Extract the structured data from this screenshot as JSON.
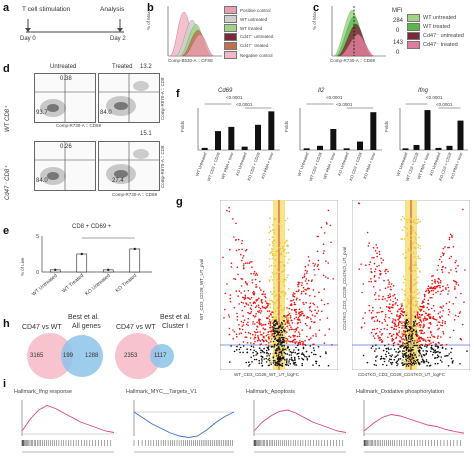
{
  "panel_a": {
    "label": "a",
    "stim_text": "T cell stimulation",
    "analysis_text": "Analysis",
    "day0": "Day 0",
    "day2": "Day 2"
  },
  "panel_b": {
    "label": "b",
    "ylabel": "% of Max",
    "xlabel": "Comp-B530-A :: CFSE",
    "legend": [
      {
        "label": "Positive control",
        "color": "#e8a0b0"
      },
      {
        "label": "WT untreated",
        "color": "#cfcfcf"
      },
      {
        "label": "WT treated",
        "color": "#9fd486"
      },
      {
        "label": "Cd47⁻ untreated",
        "color": "#7a2a3a"
      },
      {
        "label": "Cd47⁻ treated",
        "color": "#c07050"
      },
      {
        "label": "Negative control",
        "color": "#f2b8c6"
      }
    ]
  },
  "panel_c": {
    "label": "c",
    "ylabel": "% of Max",
    "xlabel": "Comp-R730-A :: CD69",
    "mfi_title": "MFI",
    "mfi_values": [
      "284",
      "0",
      "143",
      "0"
    ],
    "legend": [
      {
        "label": "WT untreated",
        "color": "#9fd486"
      },
      {
        "label": "WT treated",
        "color": "#58b848"
      },
      {
        "label": "Cd47⁻ untreated",
        "color": "#7a2a3a"
      },
      {
        "label": "Cd47⁻ treated",
        "color": "#e07b9a"
      }
    ]
  },
  "panel_d": {
    "label": "d",
    "col_untreated": "Untreated",
    "col_treated": "Treated",
    "row_wt": "WT CD8⁺",
    "row_ko": "Cd47⁻ CD8⁺",
    "axis_x": "Comp-R730-A :: CD69",
    "axis_y": "Comp-R670-A :: CD8",
    "numbers": {
      "wt_untreated_tr": "0.38",
      "wt_untreated_bl": "93.7",
      "wt_treated_tr": "13.2",
      "wt_treated_bl": "84.0",
      "ko_untreated_tr": "0.26",
      "ko_untreated_bl": "84.0",
      "ko_treated_tr": "15.1",
      "ko_treated_bl": "27.4"
    }
  },
  "panel_e": {
    "label": "e",
    "title": "CD8 + CD69 +",
    "ylabel": "% of Live",
    "categories": [
      "WT Untreated",
      "WT Treated",
      "KO Untreated",
      "KO Treated"
    ],
    "values": [
      0.3,
      2.5,
      0.3,
      3.2
    ],
    "ylim": [
      0,
      5
    ],
    "ticks": [
      "0",
      "5"
    ]
  },
  "panel_f": {
    "label": "f",
    "charts": [
      {
        "title": "Cd69",
        "pvals": [
          "<0.0001",
          "<0.0001"
        ]
      },
      {
        "title": "Il2",
        "pvals": [
          "<0.0001",
          "<0.0001"
        ]
      },
      {
        "title": "Ifng",
        "pvals": [
          "<0.0001",
          "<0.0001"
        ]
      }
    ],
    "ylabel": "Folds",
    "categories": [
      "WT Untreated",
      "WT CD3 + CD28",
      "WT PMA + Iono",
      "KO Untreated",
      "KO CD3 + CD28",
      "KO PMA + Iono"
    ]
  },
  "panel_g": {
    "label": "g",
    "left_ylabel": "WT_CD3_CD28_WT_UT_pval",
    "right_ylabel": "CD47KO_CD3_CD28_CD47KO_UT_pval",
    "left_xlabel": "WT_CD3_CD28_WT_UT_logFC",
    "right_xlabel": "CD47KO_CD3_CD28_CD47KO_UT_logFC"
  },
  "panel_h": {
    "label": "h",
    "left_title_a": "CD47 vs WT",
    "left_title_b": "Best et al.",
    "left_title_c": "All genes",
    "right_title_a": "CD47 vs WT",
    "right_title_b": "Best et al.",
    "right_title_c": "Cluster I",
    "left_counts": [
      "3165",
      "199",
      "1288"
    ],
    "right_counts": [
      "2353",
      "1117"
    ]
  },
  "panel_i": {
    "label": "i",
    "plots": [
      {
        "title": "Hallmark_Ifng response"
      },
      {
        "title": "Hallmark_MYC__Targets_V1"
      },
      {
        "title": "Hallmark_Apoptosis"
      },
      {
        "title": "Hallmark_Oxidative phosphorylation"
      }
    ],
    "ylabel": "Enrichment Score (ES)",
    "xlabel": "Rank"
  }
}
